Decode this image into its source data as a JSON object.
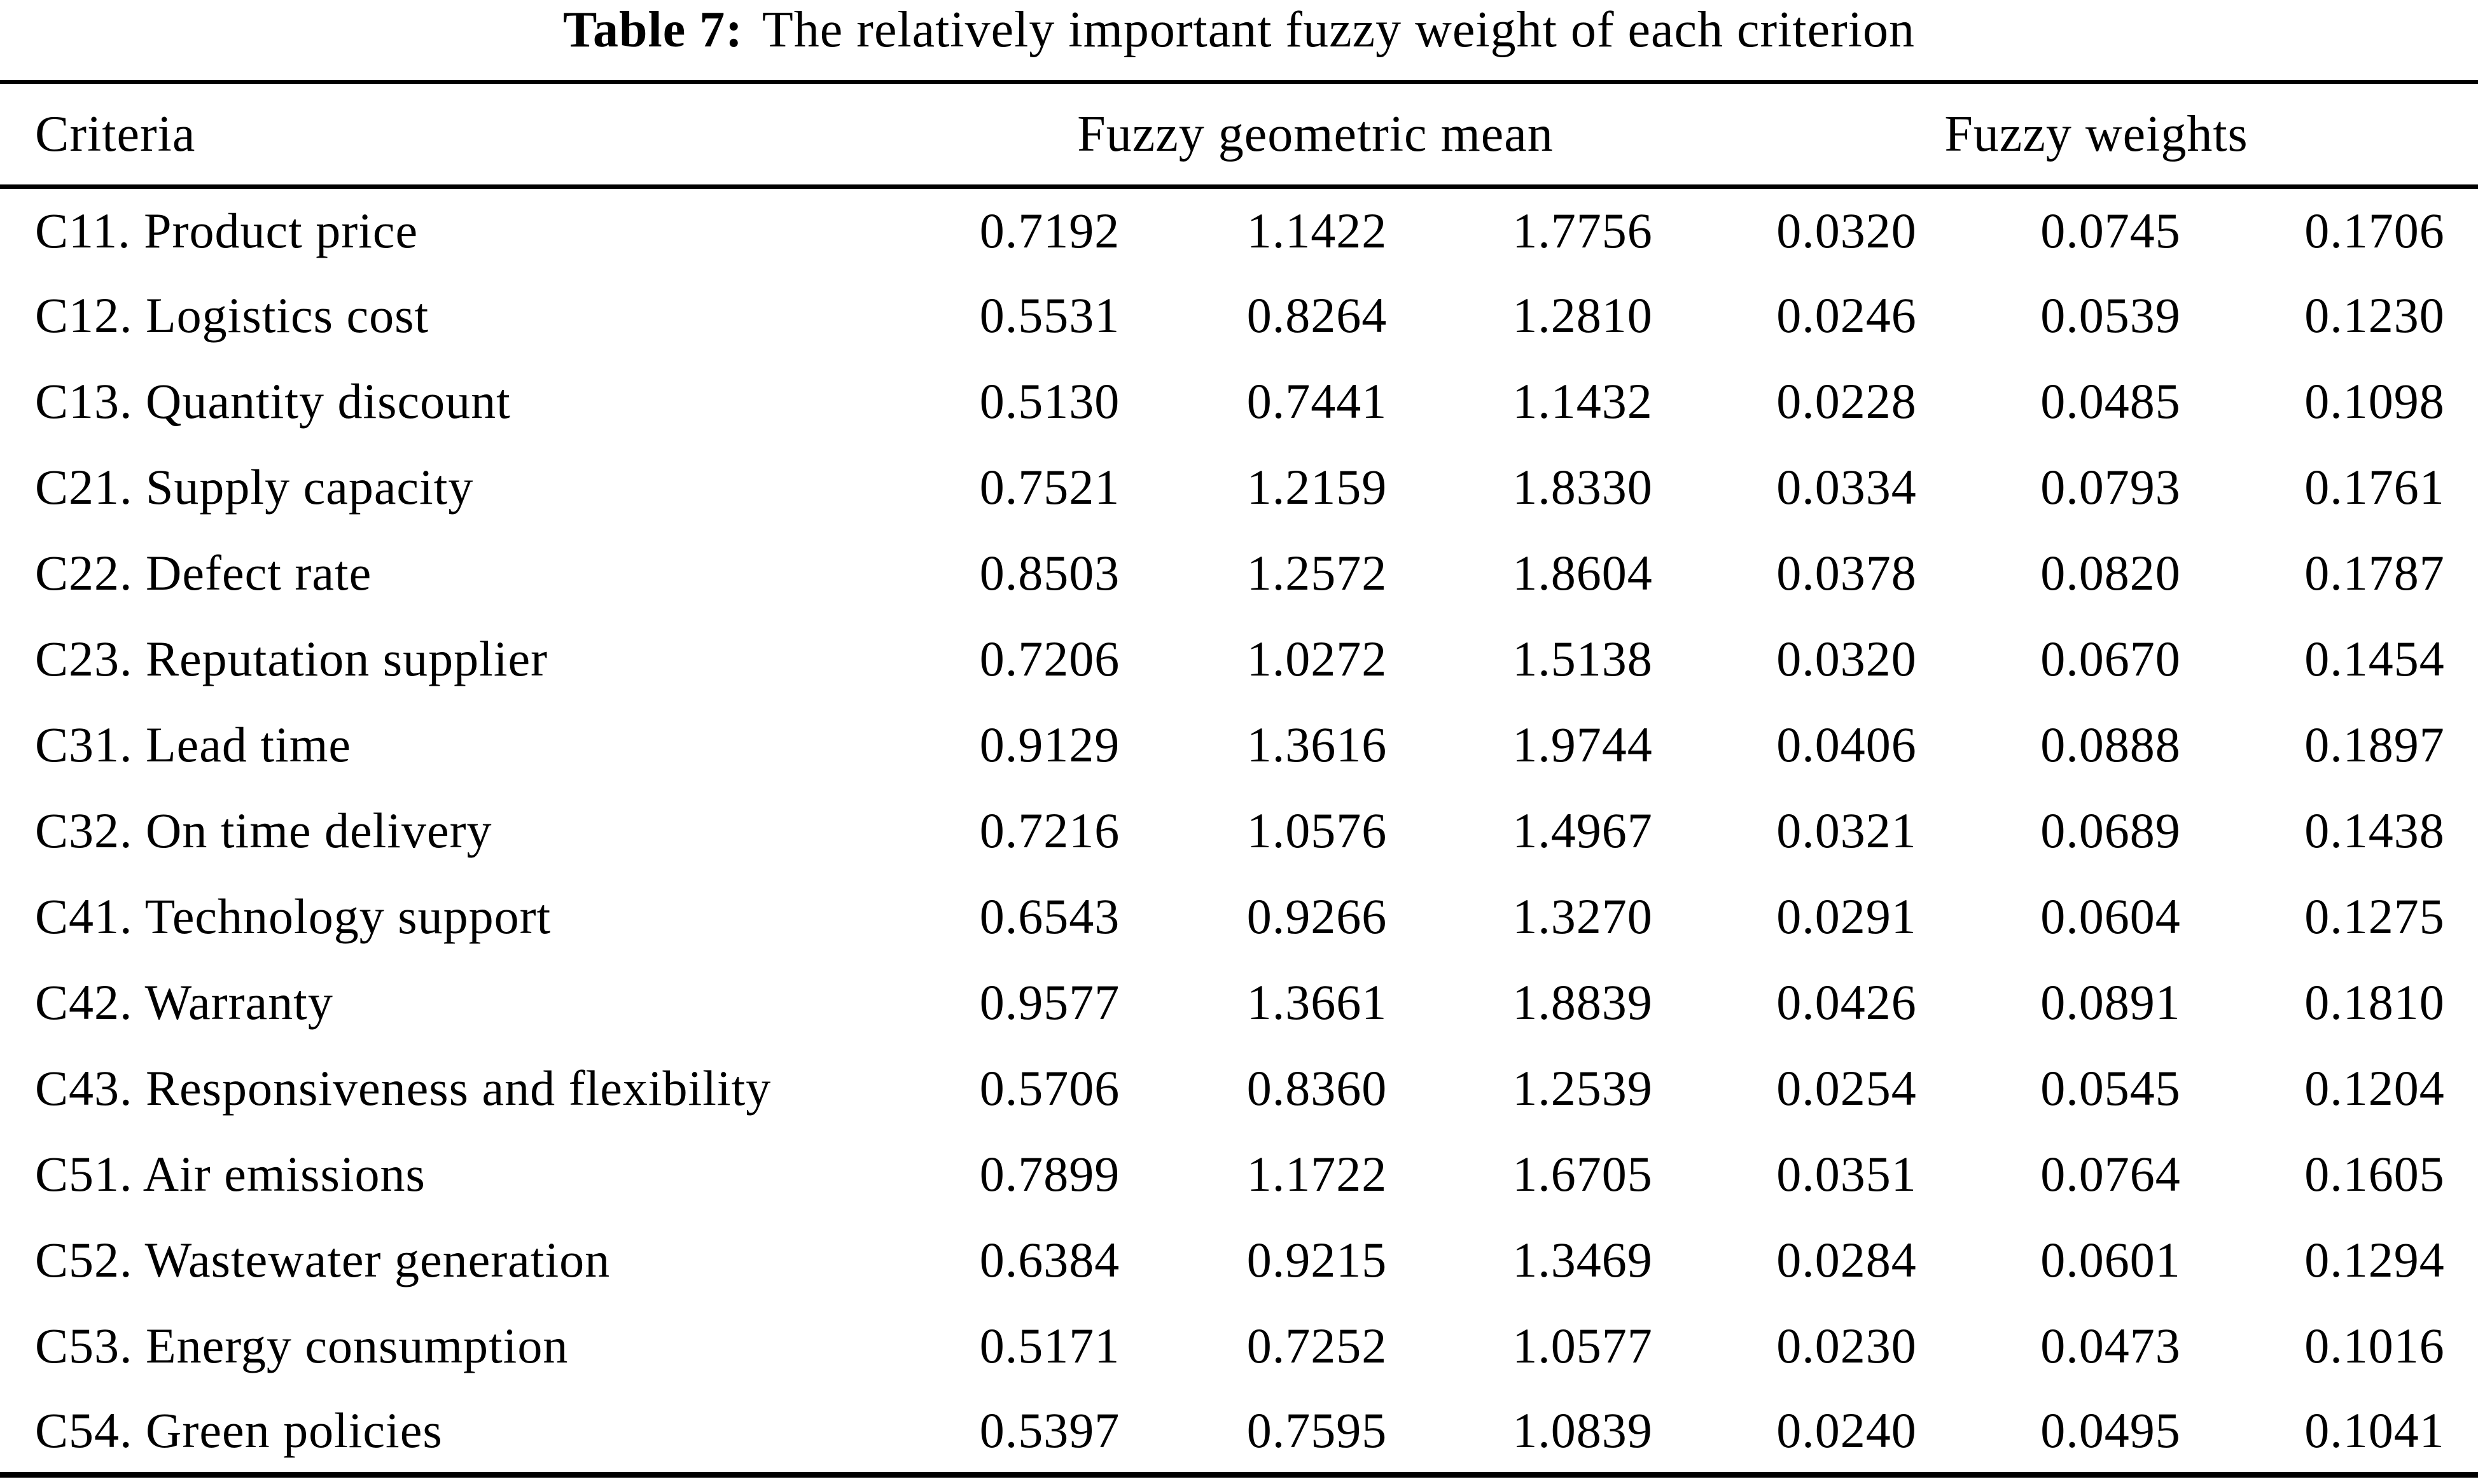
{
  "title": {
    "label": "Table 7:",
    "text": "The relatively important fuzzy weight of each criterion"
  },
  "header": {
    "criteria": "Criteria",
    "group1": "Fuzzy geometric mean",
    "group2": "Fuzzy weights"
  },
  "rows": [
    {
      "criterion": "C11. Product price",
      "values": [
        "0.7192",
        "1.1422",
        "1.7756",
        "0.0320",
        "0.0745",
        "0.1706"
      ]
    },
    {
      "criterion": "C12. Logistics cost",
      "values": [
        "0.5531",
        "0.8264",
        "1.2810",
        "0.0246",
        "0.0539",
        "0.1230"
      ]
    },
    {
      "criterion": "C13. Quantity discount",
      "values": [
        "0.5130",
        "0.7441",
        "1.1432",
        "0.0228",
        "0.0485",
        "0.1098"
      ]
    },
    {
      "criterion": "C21. Supply capacity",
      "values": [
        "0.7521",
        "1.2159",
        "1.8330",
        "0.0334",
        "0.0793",
        "0.1761"
      ]
    },
    {
      "criterion": "C22. Defect rate",
      "values": [
        "0.8503",
        "1.2572",
        "1.8604",
        "0.0378",
        "0.0820",
        "0.1787"
      ]
    },
    {
      "criterion": "C23. Reputation supplier",
      "values": [
        "0.7206",
        "1.0272",
        "1.5138",
        "0.0320",
        "0.0670",
        "0.1454"
      ]
    },
    {
      "criterion": "C31. Lead time",
      "values": [
        "0.9129",
        "1.3616",
        "1.9744",
        "0.0406",
        "0.0888",
        "0.1897"
      ]
    },
    {
      "criterion": "C32. On time delivery",
      "values": [
        "0.7216",
        "1.0576",
        "1.4967",
        "0.0321",
        "0.0689",
        "0.1438"
      ]
    },
    {
      "criterion": "C41. Technology support",
      "values": [
        "0.6543",
        "0.9266",
        "1.3270",
        "0.0291",
        "0.0604",
        "0.1275"
      ]
    },
    {
      "criterion": "C42. Warranty",
      "values": [
        "0.9577",
        "1.3661",
        "1.8839",
        "0.0426",
        "0.0891",
        "0.1810"
      ]
    },
    {
      "criterion": "C43. Responsiveness and flexibility",
      "values": [
        "0.5706",
        "0.8360",
        "1.2539",
        "0.0254",
        "0.0545",
        "0.1204"
      ]
    },
    {
      "criterion": "C51. Air emissions",
      "values": [
        "0.7899",
        "1.1722",
        "1.6705",
        "0.0351",
        "0.0764",
        "0.1605"
      ]
    },
    {
      "criterion": "C52. Wastewater generation",
      "values": [
        "0.6384",
        "0.9215",
        "1.3469",
        "0.0284",
        "0.0601",
        "0.1294"
      ]
    },
    {
      "criterion": "C53. Energy consumption",
      "values": [
        "0.5171",
        "0.7252",
        "1.0577",
        "0.0230",
        "0.0473",
        "0.1016"
      ]
    },
    {
      "criterion": "C54. Green policies",
      "values": [
        "0.5397",
        "0.7595",
        "1.0839",
        "0.0240",
        "0.0495",
        "0.1041"
      ]
    }
  ]
}
